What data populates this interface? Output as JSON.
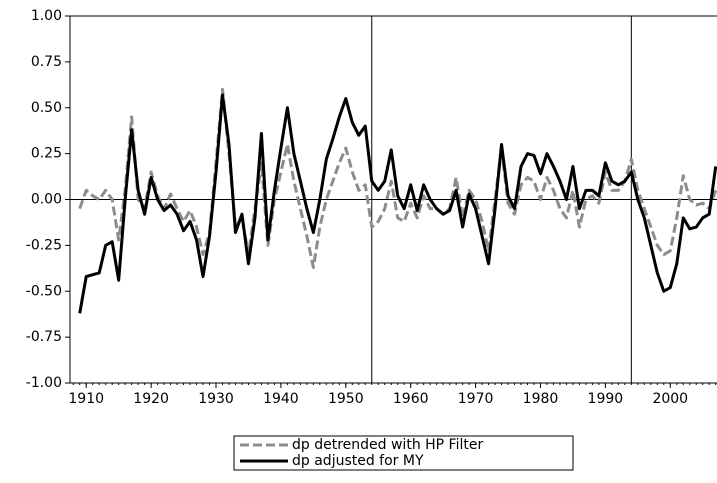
{
  "chart_data": {
    "type": "line",
    "x": [
      1909,
      1910,
      1911,
      1912,
      1913,
      1914,
      1915,
      1916,
      1917,
      1918,
      1919,
      1920,
      1921,
      1922,
      1923,
      1924,
      1925,
      1926,
      1927,
      1928,
      1929,
      1930,
      1931,
      1932,
      1933,
      1934,
      1935,
      1936,
      1937,
      1938,
      1939,
      1940,
      1941,
      1942,
      1943,
      1944,
      1945,
      1946,
      1947,
      1948,
      1949,
      1950,
      1951,
      1952,
      1953,
      1954,
      1955,
      1956,
      1957,
      1958,
      1959,
      1960,
      1961,
      1962,
      1963,
      1964,
      1965,
      1966,
      1967,
      1968,
      1969,
      1970,
      1971,
      1972,
      1973,
      1974,
      1975,
      1976,
      1977,
      1978,
      1979,
      1980,
      1981,
      1982,
      1983,
      1984,
      1985,
      1986,
      1987,
      1988,
      1989,
      1990,
      1991,
      1992,
      1993,
      1994,
      1995,
      1996,
      1997,
      1998,
      1999,
      2000,
      2001,
      2002,
      2003,
      2004,
      2005,
      2006,
      2007
    ],
    "series": [
      {
        "name": "dp detrended with HP Filter",
        "color": "#8c8c8c",
        "style": "dashed",
        "values": [
          -0.05,
          0.05,
          0.02,
          0.0,
          0.05,
          0.0,
          -0.22,
          0.05,
          0.45,
          0.0,
          -0.05,
          0.15,
          0.02,
          -0.05,
          0.03,
          -0.05,
          -0.12,
          -0.06,
          -0.15,
          -0.3,
          -0.18,
          0.2,
          0.6,
          0.25,
          -0.15,
          -0.1,
          -0.3,
          -0.05,
          0.2,
          -0.25,
          0.0,
          0.15,
          0.3,
          0.1,
          -0.05,
          -0.2,
          -0.37,
          -0.15,
          0.0,
          0.1,
          0.2,
          0.28,
          0.15,
          0.05,
          0.08,
          -0.15,
          -0.12,
          -0.05,
          0.1,
          -0.1,
          -0.12,
          -0.02,
          -0.1,
          0.02,
          -0.05,
          -0.05,
          -0.08,
          -0.05,
          0.12,
          -0.1,
          0.05,
          0.0,
          -0.12,
          -0.28,
          0.0,
          0.28,
          -0.02,
          -0.08,
          0.08,
          0.12,
          0.1,
          0.0,
          0.12,
          0.05,
          -0.05,
          -0.1,
          0.05,
          -0.15,
          0.0,
          0.02,
          -0.02,
          0.15,
          0.05,
          0.05,
          0.1,
          0.22,
          0.05,
          -0.05,
          -0.15,
          -0.25,
          -0.3,
          -0.28,
          -0.1,
          0.13,
          0.0,
          -0.03,
          -0.02,
          -0.05,
          0.05
        ]
      },
      {
        "name": "dp adjusted for MY",
        "color": "#000000",
        "style": "solid",
        "values": [
          -0.62,
          -0.42,
          -0.41,
          -0.4,
          -0.25,
          -0.23,
          -0.44,
          0.0,
          0.38,
          0.05,
          -0.08,
          0.12,
          0.0,
          -0.06,
          -0.03,
          -0.08,
          -0.17,
          -0.12,
          -0.22,
          -0.42,
          -0.2,
          0.15,
          0.57,
          0.3,
          -0.18,
          -0.08,
          -0.35,
          -0.1,
          0.36,
          -0.22,
          0.05,
          0.28,
          0.5,
          0.25,
          0.1,
          -0.05,
          -0.18,
          0.0,
          0.22,
          0.33,
          0.45,
          0.55,
          0.42,
          0.35,
          0.4,
          0.1,
          0.05,
          0.1,
          0.27,
          0.02,
          -0.05,
          0.08,
          -0.06,
          0.08,
          0.0,
          -0.05,
          -0.08,
          -0.06,
          0.05,
          -0.15,
          0.03,
          -0.05,
          -0.2,
          -0.35,
          -0.05,
          0.3,
          0.02,
          -0.05,
          0.18,
          0.25,
          0.24,
          0.14,
          0.25,
          0.18,
          0.1,
          0.0,
          0.18,
          -0.05,
          0.05,
          0.05,
          0.02,
          0.2,
          0.1,
          0.08,
          0.1,
          0.15,
          0.0,
          -0.1,
          -0.25,
          -0.4,
          -0.5,
          -0.48,
          -0.35,
          -0.1,
          -0.16,
          -0.15,
          -0.1,
          -0.08,
          0.18
        ]
      }
    ],
    "xlim": [
      1907.5,
      2007.2
    ],
    "xticks": [
      1910,
      1920,
      1930,
      1940,
      1950,
      1960,
      1970,
      1980,
      1990,
      2000
    ],
    "ylim": [
      -1,
      1
    ],
    "yticks": [
      {
        "value": -1,
        "label": "-1.00"
      },
      {
        "value": -0.75,
        "label": "-0.75"
      },
      {
        "value": -0.5,
        "label": "-0.50"
      },
      {
        "value": -0.25,
        "label": "-0.25"
      },
      {
        "value": 0,
        "label": "0.00"
      },
      {
        "value": 0.25,
        "label": "0.25"
      },
      {
        "value": 0.5,
        "label": "0.50"
      },
      {
        "value": 0.75,
        "label": "0.75"
      },
      {
        "value": 1,
        "label": "1.00"
      }
    ],
    "vlines": [
      1954,
      1994
    ],
    "hline": 0
  }
}
